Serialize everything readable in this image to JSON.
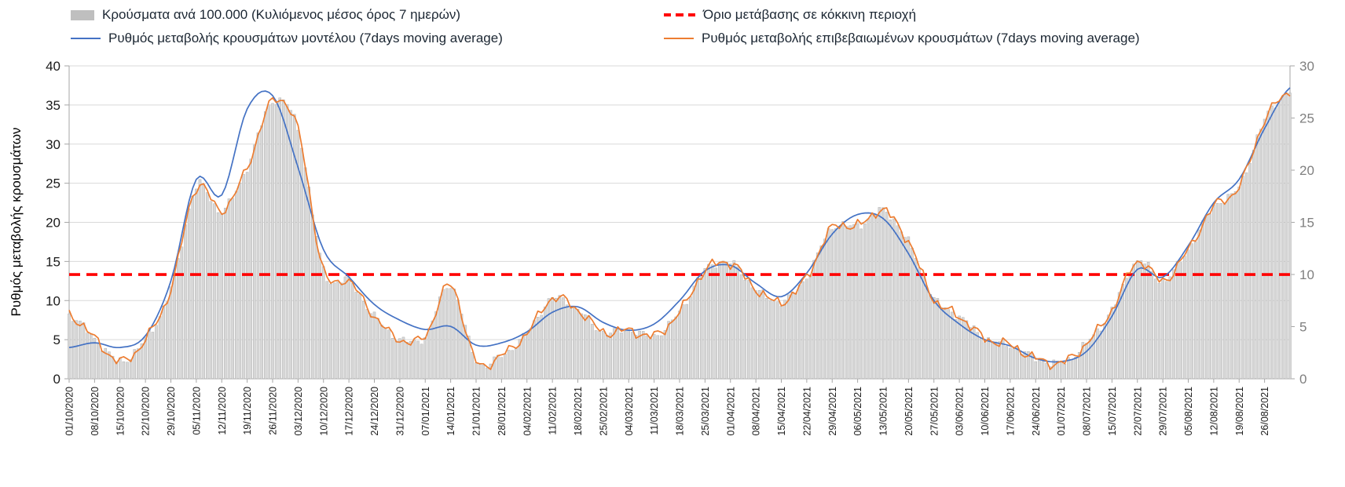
{
  "ylabel": "Ρυθμός μεταβολής κρουσμάτων",
  "legend": {
    "bars": "Κρούσματα ανά 100.000 (Κυλιόμενος μέσος όρος 7 ημερών)",
    "threshold": "Όριο μετάβασης σε κόκκινη περιοχή",
    "model": "Ρυθμός μεταβολής κρουσμάτων μοντέλου (7days moving average)",
    "confirmed": "Ρυθμός μεταβολής επιβεβαιωμένων κρουσμάτων (7days moving average)"
  },
  "colors": {
    "bar": "#D7D7D7",
    "bar_stroke": "#ABABAB",
    "bar_legend": "#BFBFBF",
    "model": "#4472C4",
    "confirmed": "#ED7D31",
    "threshold": "#FF0000",
    "grid": "#D9D9D9",
    "axis": "#A6A6A6",
    "tick_left": "#1A1A1A",
    "tick_right": "#7F7F7F",
    "legend_text": "#1C2733"
  },
  "chart_data": {
    "type": "combo-bar-line",
    "sampling": "weekly anchors, 7 days per anchor, last anchor is chart right edge",
    "days_per_anchor": 7,
    "x_labels": [
      "01/10/2020",
      "08/10/2020",
      "15/10/2020",
      "22/10/2020",
      "29/10/2020",
      "05/11/2020",
      "12/11/2020",
      "19/11/2020",
      "26/11/2020",
      "03/12/2020",
      "10/12/2020",
      "17/12/2020",
      "24/12/2020",
      "31/12/2020",
      "07/01/2021",
      "14/01/2021",
      "21/01/2021",
      "28/01/2021",
      "04/02/2021",
      "11/02/2021",
      "18/02/2021",
      "25/02/2021",
      "04/03/2021",
      "11/03/2021",
      "18/03/2021",
      "25/03/2021",
      "01/04/2021",
      "08/04/2021",
      "15/04/2021",
      "22/04/2021",
      "29/04/2021",
      "06/05/2021",
      "13/05/2021",
      "20/05/2021",
      "27/05/2021",
      "03/06/2021",
      "10/06/2021",
      "17/06/2021",
      "24/06/2021",
      "01/07/2021",
      "08/07/2021",
      "15/07/2021",
      "22/07/2021",
      "29/07/2021",
      "05/08/2021",
      "12/08/2021",
      "19/08/2021",
      "26/08/2021"
    ],
    "left_axis": {
      "min": 0,
      "max": 40,
      "step": 5
    },
    "right_axis": {
      "min": 0,
      "max": 30,
      "step": 5
    },
    "threshold_left": 13.33,
    "series": {
      "model": {
        "label": "Ρυθμός μεταβολής κρουσμάτων μοντέλου (7days moving average)",
        "axis": "left",
        "noise": 0,
        "anchors": [
          4.0,
          4.6,
          4.0,
          5.5,
          12.5,
          25.5,
          23.5,
          34.5,
          36.2,
          27.0,
          16.5,
          13.0,
          9.5,
          7.5,
          6.3,
          6.7,
          4.3,
          4.6,
          6.0,
          8.5,
          9.2,
          7.2,
          6.2,
          7.0,
          10.0,
          13.8,
          14.5,
          12.2,
          10.5,
          13.5,
          18.5,
          21.0,
          20.5,
          16.0,
          10.0,
          7.0,
          5.0,
          4.2,
          2.6,
          2.2,
          3.5,
          8.0,
          14.0,
          13.0,
          17.0,
          22.5,
          25.5,
          32.0,
          37.2
        ]
      },
      "confirmed": {
        "label": "Ρυθμός μεταβολής επιβεβαιωμένων κρουσμάτων (7days moving average)",
        "axis": "left",
        "noise": 0.9,
        "anchors": [
          8.2,
          5.2,
          2.2,
          5.0,
          11.5,
          24.5,
          21.5,
          27.0,
          35.5,
          31.8,
          13.8,
          12.5,
          8.0,
          5.0,
          5.5,
          12.0,
          2.2,
          3.0,
          5.8,
          10.3,
          8.8,
          6.0,
          6.2,
          5.5,
          8.5,
          13.8,
          14.8,
          11.5,
          9.8,
          13.0,
          19.3,
          19.5,
          21.5,
          17.5,
          10.2,
          8.0,
          5.2,
          4.3,
          2.6,
          2.0,
          4.5,
          8.8,
          15.0,
          12.5,
          16.5,
          22.0,
          24.5,
          33.0,
          36.8
        ]
      },
      "bars": {
        "label": "Κρούσματα ανά 100.000 (Κυλιόμενος μέσος όρος 7 ημερών)",
        "axis": "right",
        "noise": 0.55,
        "anchors": [
          6.1,
          3.9,
          1.7,
          3.8,
          8.6,
          18.4,
          16.1,
          20.3,
          26.6,
          23.9,
          10.4,
          9.4,
          6.0,
          3.8,
          4.1,
          9.0,
          1.8,
          2.2,
          4.4,
          7.7,
          6.6,
          4.5,
          4.7,
          4.1,
          6.4,
          10.4,
          11.1,
          8.6,
          7.4,
          9.8,
          14.5,
          14.6,
          16.1,
          13.1,
          7.7,
          6.0,
          3.9,
          3.2,
          2.0,
          1.5,
          3.4,
          6.6,
          11.3,
          9.4,
          12.4,
          16.5,
          18.4,
          24.8,
          27.6
        ]
      }
    }
  }
}
